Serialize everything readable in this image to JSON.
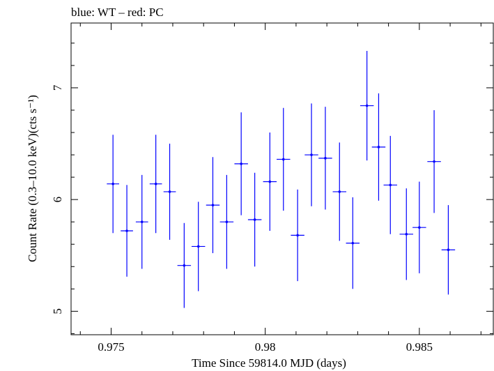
{
  "chart_data": {
    "type": "scatter",
    "title": "blue: WT – red: PC",
    "xlabel": "Time Since 59814.0 MJD (days)",
    "ylabel": "Count Rate (0.3–10.0 keV)(cts s⁻¹)",
    "xlim": [
      0.9737,
      0.9874
    ],
    "ylim": [
      4.79,
      7.58
    ],
    "x_ticks": [
      "0.975",
      "0.98",
      "0.985"
    ],
    "y_ticks": [
      "5",
      "6",
      "7"
    ],
    "grid": false,
    "series": [
      {
        "color": "#0000ff",
        "points": [
          {
            "x": 0.97506,
            "y": 6.14,
            "xerr": 0.0002,
            "yerr": 0.44
          },
          {
            "x": 0.97551,
            "y": 5.72,
            "xerr": 0.0002,
            "yerr": 0.41
          },
          {
            "x": 0.976,
            "y": 5.8,
            "xerr": 0.0002,
            "yerr": 0.42
          },
          {
            "x": 0.97645,
            "y": 6.14,
            "xerr": 0.0002,
            "yerr": 0.44
          },
          {
            "x": 0.9769,
            "y": 6.07,
            "xerr": 0.0002,
            "yerr": 0.43
          },
          {
            "x": 0.97737,
            "y": 5.41,
            "xerr": 0.00022,
            "yerr": 0.38
          },
          {
            "x": 0.97783,
            "y": 5.58,
            "xerr": 0.00022,
            "yerr": 0.4
          },
          {
            "x": 0.9783,
            "y": 5.95,
            "xerr": 0.00022,
            "yerr": 0.43
          },
          {
            "x": 0.97875,
            "y": 5.8,
            "xerr": 0.00022,
            "yerr": 0.42
          },
          {
            "x": 0.97922,
            "y": 6.32,
            "xerr": 0.00022,
            "yerr": 0.46
          },
          {
            "x": 0.97966,
            "y": 5.82,
            "xerr": 0.00022,
            "yerr": 0.42
          },
          {
            "x": 0.98015,
            "y": 6.16,
            "xerr": 0.00022,
            "yerr": 0.44
          },
          {
            "x": 0.98059,
            "y": 6.36,
            "xerr": 0.00022,
            "yerr": 0.46
          },
          {
            "x": 0.98105,
            "y": 5.68,
            "xerr": 0.00022,
            "yerr": 0.41
          },
          {
            "x": 0.9815,
            "y": 6.4,
            "xerr": 0.00022,
            "yerr": 0.46
          },
          {
            "x": 0.98195,
            "y": 6.37,
            "xerr": 0.00022,
            "yerr": 0.46
          },
          {
            "x": 0.98241,
            "y": 6.07,
            "xerr": 0.00022,
            "yerr": 0.44
          },
          {
            "x": 0.98284,
            "y": 5.61,
            "xerr": 0.00022,
            "yerr": 0.41
          },
          {
            "x": 0.9833,
            "y": 6.84,
            "xerr": 0.00022,
            "yerr": 0.49
          },
          {
            "x": 0.98368,
            "y": 6.47,
            "xerr": 0.00022,
            "yerr": 0.48
          },
          {
            "x": 0.98406,
            "y": 6.13,
            "xerr": 0.00022,
            "yerr": 0.44
          },
          {
            "x": 0.98458,
            "y": 5.69,
            "xerr": 0.00022,
            "yerr": 0.41
          },
          {
            "x": 0.985,
            "y": 5.75,
            "xerr": 0.00022,
            "yerr": 0.41
          },
          {
            "x": 0.98548,
            "y": 6.34,
            "xerr": 0.00022,
            "yerr": 0.46
          },
          {
            "x": 0.98594,
            "y": 5.55,
            "xerr": 0.00022,
            "yerr": 0.4
          }
        ]
      }
    ]
  }
}
